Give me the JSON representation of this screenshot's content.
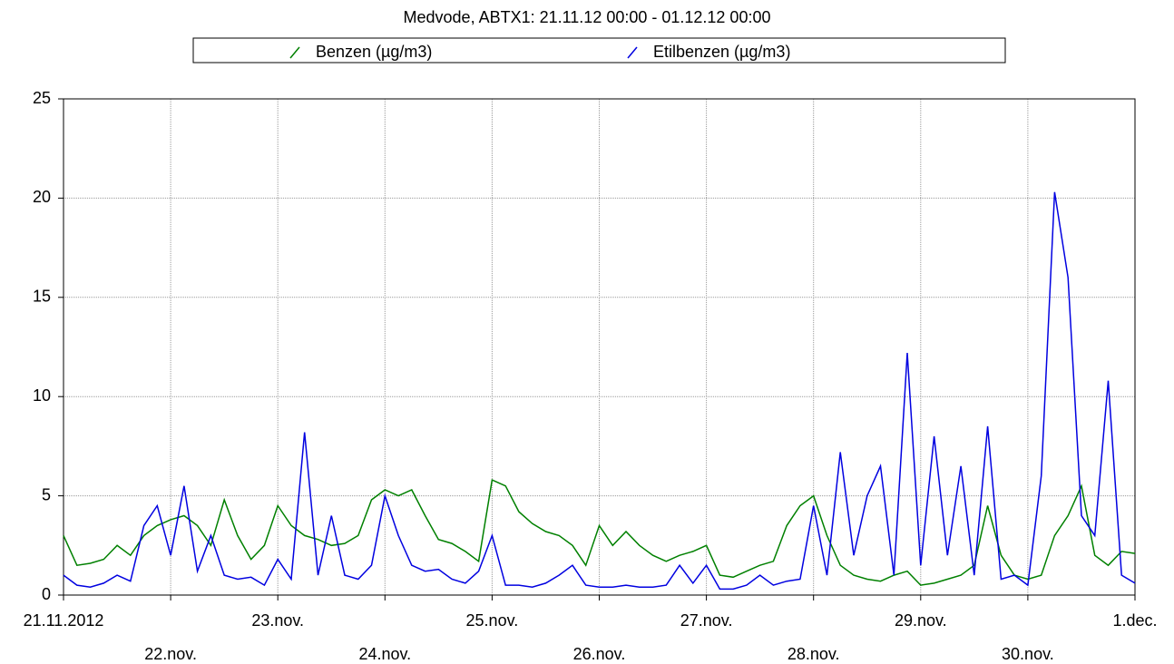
{
  "chart_data": {
    "type": "line",
    "title": "Medvode, ABTX1: 21.11.12 00:00 - 01.12.12 00:00",
    "x": [
      "2012-11-21T00:00",
      "2012-11-21T03:00",
      "2012-11-21T06:00",
      "2012-11-21T09:00",
      "2012-11-21T12:00",
      "2012-11-21T15:00",
      "2012-11-21T18:00",
      "2012-11-21T21:00",
      "2012-11-22T00:00",
      "2012-11-22T03:00",
      "2012-11-22T06:00",
      "2012-11-22T09:00",
      "2012-11-22T12:00",
      "2012-11-22T15:00",
      "2012-11-22T18:00",
      "2012-11-22T21:00",
      "2012-11-23T00:00",
      "2012-11-23T03:00",
      "2012-11-23T06:00",
      "2012-11-23T09:00",
      "2012-11-23T12:00",
      "2012-11-23T15:00",
      "2012-11-23T18:00",
      "2012-11-23T21:00",
      "2012-11-24T00:00",
      "2012-11-24T03:00",
      "2012-11-24T06:00",
      "2012-11-24T09:00",
      "2012-11-24T12:00",
      "2012-11-24T15:00",
      "2012-11-24T18:00",
      "2012-11-24T21:00",
      "2012-11-25T00:00",
      "2012-11-25T03:00",
      "2012-11-25T06:00",
      "2012-11-25T09:00",
      "2012-11-25T12:00",
      "2012-11-25T15:00",
      "2012-11-25T18:00",
      "2012-11-25T21:00",
      "2012-11-26T00:00",
      "2012-11-26T03:00",
      "2012-11-26T06:00",
      "2012-11-26T09:00",
      "2012-11-26T12:00",
      "2012-11-26T15:00",
      "2012-11-26T18:00",
      "2012-11-26T21:00",
      "2012-11-27T00:00",
      "2012-11-27T03:00",
      "2012-11-27T06:00",
      "2012-11-27T09:00",
      "2012-11-27T12:00",
      "2012-11-27T15:00",
      "2012-11-27T18:00",
      "2012-11-27T21:00",
      "2012-11-28T00:00",
      "2012-11-28T03:00",
      "2012-11-28T06:00",
      "2012-11-28T09:00",
      "2012-11-28T12:00",
      "2012-11-28T15:00",
      "2012-11-28T18:00",
      "2012-11-28T21:00",
      "2012-11-29T00:00",
      "2012-11-29T03:00",
      "2012-11-29T06:00",
      "2012-11-29T09:00",
      "2012-11-29T12:00",
      "2012-11-29T15:00",
      "2012-11-29T18:00",
      "2012-11-29T21:00",
      "2012-11-30T00:00",
      "2012-11-30T03:00",
      "2012-11-30T06:00",
      "2012-11-30T09:00",
      "2012-11-30T12:00",
      "2012-11-30T15:00",
      "2012-11-30T18:00",
      "2012-11-30T21:00",
      "2012-12-01T00:00"
    ],
    "series": [
      {
        "name": "Benzen (µg/m3)",
        "color": "#008000",
        "values": [
          3.0,
          1.5,
          1.6,
          1.8,
          2.5,
          2.0,
          3.0,
          3.5,
          3.8,
          4.0,
          3.5,
          2.5,
          4.8,
          3.0,
          1.8,
          2.5,
          4.5,
          3.5,
          3.0,
          2.8,
          2.5,
          2.6,
          3.0,
          4.8,
          5.3,
          5.0,
          5.3,
          4.0,
          2.8,
          2.6,
          2.2,
          1.7,
          5.8,
          5.5,
          4.2,
          3.6,
          3.2,
          3.0,
          2.5,
          1.5,
          3.5,
          2.5,
          3.2,
          2.5,
          2.0,
          1.7,
          2.0,
          2.2,
          2.5,
          1.0,
          0.9,
          1.2,
          1.5,
          1.7,
          3.5,
          4.5,
          5.0,
          3.0,
          1.5,
          1.0,
          0.8,
          0.7,
          1.0,
          1.2,
          0.5,
          0.6,
          0.8,
          1.0,
          1.5,
          4.5,
          2.0,
          1.0,
          0.8,
          1.0,
          3.0,
          4.0,
          5.5,
          2.0,
          1.5,
          2.2,
          2.1
        ]
      },
      {
        "name": "Etilbenzen (µg/m3)",
        "color": "#0000e0",
        "values": [
          1.0,
          0.5,
          0.4,
          0.6,
          1.0,
          0.7,
          3.5,
          4.5,
          2.0,
          5.5,
          1.2,
          3.0,
          1.0,
          0.8,
          0.9,
          0.5,
          1.8,
          0.8,
          8.2,
          1.0,
          4.0,
          1.0,
          0.8,
          1.5,
          5.0,
          3.0,
          1.5,
          1.2,
          1.3,
          0.8,
          0.6,
          1.2,
          3.0,
          0.5,
          0.5,
          0.4,
          0.6,
          1.0,
          1.5,
          0.5,
          0.4,
          0.4,
          0.5,
          0.4,
          0.4,
          0.5,
          1.5,
          0.6,
          1.5,
          0.3,
          0.3,
          0.5,
          1.0,
          0.5,
          0.7,
          0.8,
          4.5,
          1.0,
          7.2,
          2.0,
          5.0,
          6.5,
          1.0,
          12.2,
          1.5,
          8.0,
          2.0,
          6.5,
          1.0,
          8.5,
          0.8,
          1.0,
          0.5,
          6.0,
          20.3,
          16.0,
          4.0,
          3.0,
          10.8,
          1.0,
          0.6
        ]
      }
    ],
    "xlim": [
      "2012-11-21T00:00",
      "2012-12-01T00:00"
    ],
    "xticks": [
      {
        "value": "2012-11-21T00:00",
        "label": "21.11.2012"
      },
      {
        "value": "2012-11-22T00:00",
        "label": "22.nov."
      },
      {
        "value": "2012-11-23T00:00",
        "label": "23.nov."
      },
      {
        "value": "2012-11-24T00:00",
        "label": "24.nov."
      },
      {
        "value": "2012-11-25T00:00",
        "label": "25.nov."
      },
      {
        "value": "2012-11-26T00:00",
        "label": "26.nov."
      },
      {
        "value": "2012-11-27T00:00",
        "label": "27.nov."
      },
      {
        "value": "2012-11-28T00:00",
        "label": "28.nov."
      },
      {
        "value": "2012-11-29T00:00",
        "label": "29.nov."
      },
      {
        "value": "2012-11-30T00:00",
        "label": "30.nov."
      },
      {
        "value": "2012-12-01T00:00",
        "label": "1.dec."
      }
    ],
    "ylim": [
      0,
      25
    ],
    "yticks": [
      0,
      5,
      10,
      15,
      20,
      25
    ],
    "grid": true
  }
}
